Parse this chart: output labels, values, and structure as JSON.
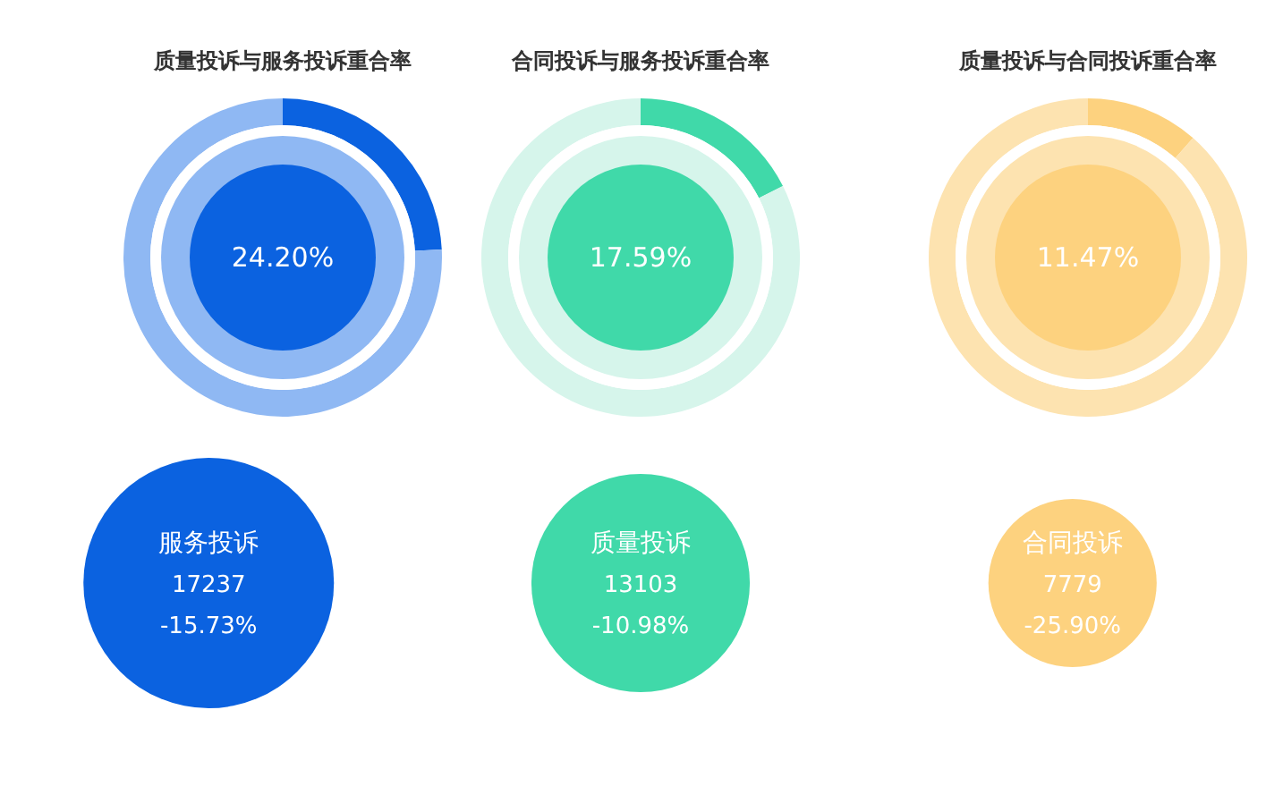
{
  "chart_data": [
    {
      "type": "donut",
      "title": "质量投诉与服务投诉重合率",
      "categories": [
        null,
        null
      ],
      "values": [
        24.2,
        75.8
      ],
      "colors": [
        "#0b62e0",
        "#8fb8f3"
      ],
      "annotations": [
        "24.20%"
      ]
    },
    {
      "type": "donut",
      "title": "合同投诉与服务投诉重合率",
      "categories": [
        null,
        null
      ],
      "values": [
        17.59,
        82.41
      ],
      "colors": [
        "#40d9a9",
        "#d6f5eb"
      ],
      "annotations": [
        "17.59%"
      ]
    },
    {
      "type": "donut",
      "title": "质量投诉与合同投诉重合率",
      "categories": [
        null,
        null
      ],
      "values": [
        11.47,
        88.53
      ],
      "colors": [
        "#fdd27f",
        "#fde3b0"
      ],
      "annotations": [
        "11.47%"
      ]
    },
    {
      "type": "other",
      "categories": [
        "服务投诉",
        "质量投诉",
        "合同投诉"
      ],
      "colors": [
        "#0b62e0",
        "#40d9a9",
        "#fdd27f"
      ],
      "values": [
        17237,
        13103,
        7779
      ],
      "data_labels": true,
      "annotations": [
        {
          "text": "-15.73%",
          "x": "服务投诉"
        },
        {
          "text": "-10.98%",
          "x": "质量投诉"
        },
        {
          "text": "-25.90%",
          "x": "合同投诉"
        }
      ]
    }
  ]
}
